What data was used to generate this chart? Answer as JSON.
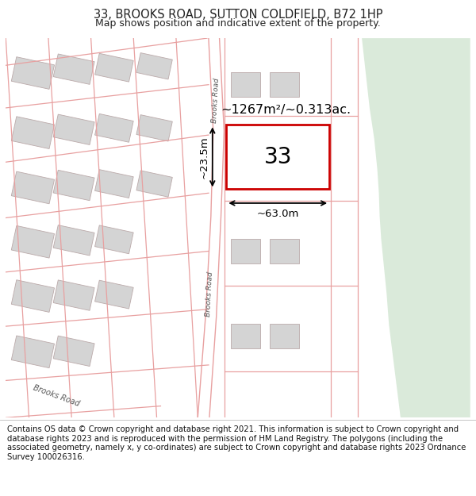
{
  "title": "33, BROOKS ROAD, SUTTON COLDFIELD, B72 1HP",
  "subtitle": "Map shows position and indicative extent of the property.",
  "footer": "Contains OS data © Crown copyright and database right 2021. This information is subject to Crown copyright and database rights 2023 and is reproduced with the permission of HM Land Registry. The polygons (including the associated geometry, namely x, y co-ordinates) are subject to Crown copyright and database rights 2023 Ordnance Survey 100026316.",
  "map_bg": "#f2f2f2",
  "road_line_color": "#e8a0a0",
  "building_fill": "#d4d4d4",
  "building_edge": "#bbaaaa",
  "highlight_fill": "#ffffff",
  "highlight_edge": "#cc0000",
  "green_area": "#daeada",
  "label_33": "33",
  "area_label": "~1267m²/~0.313ac.",
  "dim_width": "~63.0m",
  "dim_height": "~23.5m",
  "brooks_road_label": "Brooks Road",
  "title_fontsize": 10.5,
  "subtitle_fontsize": 9,
  "footer_fontsize": 7.2,
  "title_color": "#222222",
  "footer_color": "#111111",
  "road_bg": "#ffffff"
}
